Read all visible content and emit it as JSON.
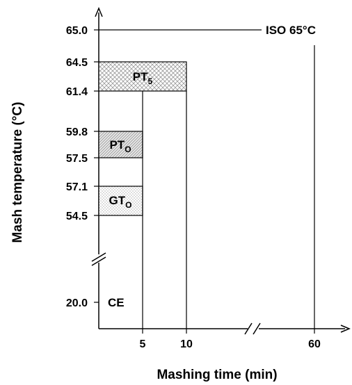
{
  "chart_data": {
    "type": "diagram",
    "xlabel": "Mashing time (min)",
    "ylabel": "Mash temperature (°C)",
    "x_ticks": [
      "5",
      "10",
      "60"
    ],
    "y_ticks": [
      "65.0",
      "64.5",
      "61.4",
      "59.8",
      "57.5",
      "57.1",
      "54.5",
      "20.0"
    ],
    "axis_breaks": [
      "x",
      "y"
    ],
    "regions": [
      {
        "label_main": "PT",
        "label_sub": "5",
        "t_start": 0,
        "t_end": 10,
        "temp_low": "61.4",
        "temp_high": "64.5",
        "pattern": "crosshatch"
      },
      {
        "label_main": "PT",
        "label_sub": "O",
        "t_start": 0,
        "t_end": 5,
        "temp_low": "57.5",
        "temp_high": "59.8",
        "pattern": "diagonal"
      },
      {
        "label_main": "GT",
        "label_sub": "O",
        "t_start": 0,
        "t_end": 5,
        "temp_low": "54.5",
        "temp_high": "57.1",
        "pattern": "dots"
      }
    ],
    "annotations": [
      {
        "label": "ISO 65°C",
        "temp": "65.0"
      },
      {
        "label": "CE",
        "temp": "20.0"
      }
    ]
  }
}
